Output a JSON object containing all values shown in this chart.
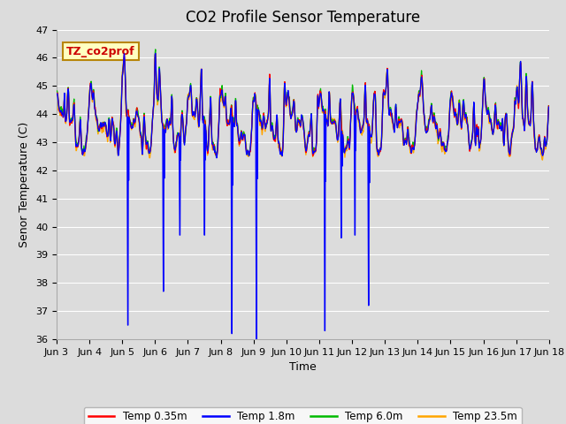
{
  "title": "CO2 Profile Sensor Temperature",
  "ylabel": "Senor Temperature (C)",
  "xlabel": "Time",
  "ylim": [
    36.0,
    47.0
  ],
  "yticks": [
    36.0,
    37.0,
    38.0,
    39.0,
    40.0,
    41.0,
    42.0,
    43.0,
    44.0,
    45.0,
    46.0,
    47.0
  ],
  "colors": {
    "red": "#FF0000",
    "blue": "#0000FF",
    "green": "#00BB00",
    "orange": "#FFA500"
  },
  "legend_labels": [
    "Temp 0.35m",
    "Temp 1.8m",
    "Temp 6.0m",
    "Temp 23.5m"
  ],
  "annotation_text": "TZ_co2prof",
  "fig_bg_color": "#DCDCDC",
  "plot_bg": "#DCDCDC",
  "grid_color": "#FFFFFF",
  "title_fontsize": 12,
  "axis_fontsize": 9,
  "tick_fontsize": 8
}
